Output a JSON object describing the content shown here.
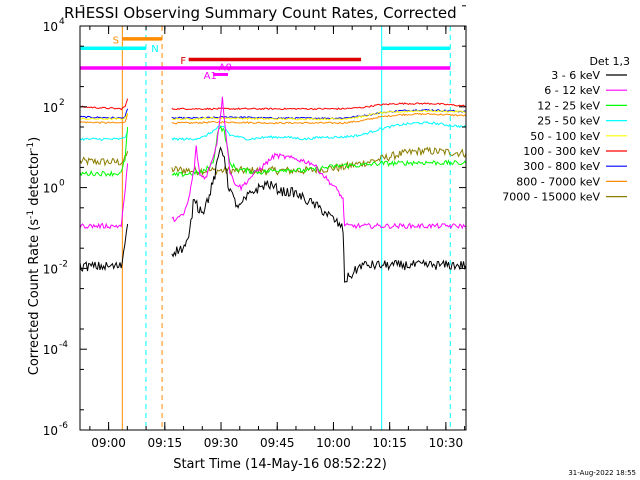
{
  "chart_data": {
    "type": "line",
    "title": "RHESSI Observing Summary Count Rates, Corrected",
    "xlabel": "Start Time (14-May-16 08:52:22)",
    "ylabel_parts": [
      "Corrected Count Rate (s",
      "-1",
      " detector",
      "-1",
      ")"
    ],
    "x_unit": "minutes after 08:52:22",
    "xlim": [
      0,
      103
    ],
    "ylim_log10": [
      -6,
      4
    ],
    "y_scale": "log",
    "grid": false,
    "legend_placement": "right",
    "x_ticks": [
      {
        "t": 7.63,
        "label": "09:00"
      },
      {
        "t": 22.63,
        "label": "09:15"
      },
      {
        "t": 37.63,
        "label": "09:30"
      },
      {
        "t": 52.63,
        "label": "09:45"
      },
      {
        "t": 67.63,
        "label": "10:00"
      },
      {
        "t": 82.63,
        "label": "10:15"
      },
      {
        "t": 97.63,
        "label": "10:30"
      }
    ],
    "y_ticks": [
      {
        "e": -6,
        "label": "10",
        "sup": "-6"
      },
      {
        "e": -4,
        "label": "10",
        "sup": "-4"
      },
      {
        "e": -2,
        "label": "10",
        "sup": "-2"
      },
      {
        "e": 0,
        "label": "10",
        "sup": "0"
      },
      {
        "e": 2,
        "label": "10",
        "sup": "2"
      },
      {
        "e": 4,
        "label": "10",
        "sup": "4"
      }
    ],
    "legend_title": "Det 1,3",
    "series": [
      {
        "name": "3 - 6 keV",
        "color": "#000000",
        "points": [
          [
            0,
            -1.95
          ],
          [
            11,
            -1.95
          ],
          [
            11.6,
            -1.6
          ],
          [
            12.7,
            -0.9
          ],
          [
            15,
            null
          ],
          [
            24.5,
            -1.6
          ],
          [
            27.5,
            -1.5
          ],
          [
            29,
            -1.3
          ],
          [
            30.5,
            -0.2
          ],
          [
            31.5,
            -0.5
          ],
          [
            33,
            -0.55
          ],
          [
            34.5,
            -0.2
          ],
          [
            36,
            0.3
          ],
          [
            37.5,
            1.0
          ],
          [
            38.5,
            0.8
          ],
          [
            39.5,
            0.1
          ],
          [
            41,
            -0.3
          ],
          [
            42.5,
            -0.5
          ],
          [
            44,
            -0.3
          ],
          [
            46,
            -0.1
          ],
          [
            50,
            0.1
          ],
          [
            54,
            -0.1
          ],
          [
            57,
            -0.12
          ],
          [
            63,
            -0.45
          ],
          [
            66,
            -0.65
          ],
          [
            69.5,
            -0.95
          ],
          [
            70.2,
            -1.05
          ],
          [
            70.6,
            -2.3
          ],
          [
            72.5,
            -2.15
          ],
          [
            75,
            -1.92
          ],
          [
            78,
            -1.92
          ],
          [
            88,
            -1.92
          ],
          [
            103,
            -1.92
          ]
        ]
      },
      {
        "name": "6 - 12 keV",
        "color": "#ff00ff",
        "points": [
          [
            0,
            -0.95
          ],
          [
            11,
            -0.95
          ],
          [
            11.8,
            -0.3
          ],
          [
            12.7,
            0.6
          ],
          [
            15,
            null
          ],
          [
            24.5,
            -0.8
          ],
          [
            27.5,
            -0.7
          ],
          [
            29,
            -0.3
          ],
          [
            30.5,
            0.5
          ],
          [
            31,
            1.0
          ],
          [
            32,
            0.3
          ],
          [
            33.5,
            0.25
          ],
          [
            35,
            0.6
          ],
          [
            36.5,
            1.1
          ],
          [
            38,
            2.2
          ],
          [
            39,
            1.3
          ],
          [
            40,
            0.4
          ],
          [
            41,
            0.15
          ],
          [
            43,
            0.0
          ],
          [
            46,
            0.3
          ],
          [
            52,
            0.8
          ],
          [
            58,
            0.7
          ],
          [
            62,
            0.6
          ],
          [
            66,
            0.2
          ],
          [
            69,
            -0.1
          ],
          [
            70.2,
            -0.3
          ],
          [
            70.6,
            -0.95
          ],
          [
            75,
            -0.95
          ],
          [
            88,
            -0.95
          ],
          [
            103,
            -0.95
          ]
        ]
      },
      {
        "name": "12 - 25 keV",
        "color": "#00ff00",
        "points": [
          [
            0,
            0.35
          ],
          [
            11,
            0.35
          ],
          [
            12,
            0.7
          ],
          [
            12.7,
            1.5
          ],
          [
            15,
            null
          ],
          [
            24.5,
            0.3
          ],
          [
            30,
            0.35
          ],
          [
            33,
            0.4
          ],
          [
            35.5,
            0.6
          ],
          [
            37,
            1.5
          ],
          [
            38.5,
            1.4
          ],
          [
            40,
            0.6
          ],
          [
            42,
            0.45
          ],
          [
            48,
            0.38
          ],
          [
            54,
            0.45
          ],
          [
            60,
            0.42
          ],
          [
            66,
            0.5
          ],
          [
            70,
            0.55
          ],
          [
            75,
            0.55
          ],
          [
            80,
            0.6
          ],
          [
            85,
            0.6
          ],
          [
            90,
            0.62
          ],
          [
            94,
            0.62
          ],
          [
            103,
            0.6
          ]
        ]
      },
      {
        "name": "25 - 50 keV",
        "color": "#00ffff",
        "points": [
          [
            0,
            1.2
          ],
          [
            11,
            1.2
          ],
          [
            12,
            1.25
          ],
          [
            12.7,
            1.4
          ],
          [
            15,
            null
          ],
          [
            24.5,
            1.2
          ],
          [
            30,
            1.2
          ],
          [
            33,
            1.25
          ],
          [
            35.5,
            1.4
          ],
          [
            37,
            1.5
          ],
          [
            38.5,
            1.5
          ],
          [
            40,
            1.3
          ],
          [
            45,
            1.2
          ],
          [
            50,
            1.25
          ],
          [
            55,
            1.25
          ],
          [
            60,
            1.2
          ],
          [
            65,
            1.25
          ],
          [
            70,
            1.25
          ],
          [
            75,
            1.3
          ],
          [
            80,
            1.45
          ],
          [
            85,
            1.55
          ],
          [
            90,
            1.6
          ],
          [
            94,
            1.6
          ],
          [
            98,
            1.55
          ],
          [
            103,
            1.5
          ]
        ]
      },
      {
        "name": "50 - 100 keV",
        "color": "#ffff00",
        "points": [
          [
            0,
            1.7
          ],
          [
            11,
            1.7
          ],
          [
            12,
            1.72
          ],
          [
            12.7,
            1.85
          ],
          [
            15,
            null
          ],
          [
            24.5,
            1.7
          ],
          [
            30,
            1.7
          ],
          [
            35,
            1.72
          ],
          [
            40,
            1.72
          ],
          [
            50,
            1.7
          ],
          [
            60,
            1.7
          ],
          [
            70,
            1.7
          ],
          [
            75,
            1.75
          ],
          [
            80,
            1.85
          ],
          [
            90,
            1.9
          ],
          [
            103,
            1.88
          ]
        ]
      },
      {
        "name": "100 - 300 keV",
        "color": "#ff0000",
        "points": [
          [
            0,
            2.0
          ],
          [
            11,
            1.95
          ],
          [
            12,
            2.0
          ],
          [
            12.7,
            2.2
          ],
          [
            15,
            null
          ],
          [
            24.5,
            1.95
          ],
          [
            30,
            1.95
          ],
          [
            35,
            1.95
          ],
          [
            40,
            1.95
          ],
          [
            50,
            1.95
          ],
          [
            60,
            1.95
          ],
          [
            70,
            1.95
          ],
          [
            75,
            1.98
          ],
          [
            80,
            2.05
          ],
          [
            85,
            2.08
          ],
          [
            90,
            2.08
          ],
          [
            94,
            2.08
          ],
          [
            103,
            2.02
          ]
        ]
      },
      {
        "name": "300 - 800 keV",
        "color": "#0000ff",
        "points": [
          [
            0,
            1.75
          ],
          [
            11,
            1.72
          ],
          [
            12,
            1.75
          ],
          [
            12.7,
            1.95
          ],
          [
            15,
            null
          ],
          [
            24.5,
            1.72
          ],
          [
            30,
            1.72
          ],
          [
            35,
            1.73
          ],
          [
            40,
            1.75
          ],
          [
            50,
            1.72
          ],
          [
            60,
            1.72
          ],
          [
            70,
            1.72
          ],
          [
            75,
            1.77
          ],
          [
            80,
            1.85
          ],
          [
            85,
            1.9
          ],
          [
            90,
            1.92
          ],
          [
            94,
            1.92
          ],
          [
            103,
            1.88
          ]
        ]
      },
      {
        "name": "800 - 7000 keV",
        "color": "#ff8c00",
        "points": [
          [
            0,
            1.62
          ],
          [
            11,
            1.6
          ],
          [
            12,
            1.64
          ],
          [
            12.7,
            1.82
          ],
          [
            15,
            null
          ],
          [
            24.5,
            1.6
          ],
          [
            30,
            1.6
          ],
          [
            35,
            1.62
          ],
          [
            40,
            1.62
          ],
          [
            50,
            1.6
          ],
          [
            60,
            1.6
          ],
          [
            70,
            1.6
          ],
          [
            75,
            1.65
          ],
          [
            80,
            1.75
          ],
          [
            85,
            1.8
          ],
          [
            90,
            1.82
          ],
          [
            94,
            1.82
          ],
          [
            103,
            1.78
          ]
        ]
      },
      {
        "name": "7000 - 15000 keV",
        "color": "#8b7d00",
        "points": [
          [
            0,
            0.65
          ],
          [
            11,
            0.63
          ],
          [
            12,
            0.7
          ],
          [
            12.7,
            0.9
          ],
          [
            15,
            null
          ],
          [
            24.5,
            0.45
          ],
          [
            30,
            0.42
          ],
          [
            35,
            0.42
          ],
          [
            40,
            0.42
          ],
          [
            50,
            0.42
          ],
          [
            60,
            0.42
          ],
          [
            70,
            0.5
          ],
          [
            75,
            0.6
          ],
          [
            80,
            0.7
          ],
          [
            85,
            0.82
          ],
          [
            90,
            0.9
          ],
          [
            94,
            0.9
          ],
          [
            98,
            0.88
          ],
          [
            103,
            0.85
          ]
        ]
      }
    ],
    "vlines": [
      {
        "t": 0.0,
        "color": "#00ffff",
        "dash": false
      },
      {
        "t": 11.3,
        "color": "#ff8c00",
        "dash": false
      },
      {
        "t": 17.6,
        "color": "#00ffff",
        "dash": true
      },
      {
        "t": 21.9,
        "color": "#ff8c00",
        "dash": true
      },
      {
        "t": 80.5,
        "color": "#00ffff",
        "dash": false
      },
      {
        "t": 98.8,
        "color": "#00ffff",
        "dash": true
      }
    ],
    "flag_bars": [
      {
        "t0": 11.3,
        "t1": 21.9,
        "log": 3.68,
        "color": "#ff8c00",
        "width": 3.5
      },
      {
        "t0": 0.0,
        "t1": 17.6,
        "log": 3.45,
        "color": "#00ffff",
        "width": 3.5
      },
      {
        "t0": 80.5,
        "t1": 98.8,
        "log": 3.45,
        "color": "#00ffff",
        "width": 3.5
      },
      {
        "t0": 29.0,
        "t1": 75.0,
        "log": 3.17,
        "color": "#dd0000",
        "width": 3.5
      },
      {
        "t0": 0.0,
        "t1": 98.8,
        "log": 2.96,
        "color": "#ff00ff",
        "width": 3.5
      },
      {
        "t0": 35.5,
        "t1": 39.5,
        "log": 2.8,
        "color": "#ff00ff",
        "width": 3.0
      }
    ],
    "flag_labels": [
      {
        "t": 8.7,
        "log": 3.67,
        "text": "S",
        "color": "#ff8c00"
      },
      {
        "t": 19.0,
        "log": 3.45,
        "text": "N",
        "color": "#00ffff"
      },
      {
        "t": 26.8,
        "log": 3.16,
        "text": "F",
        "color": "#dd0000"
      },
      {
        "t": 37.0,
        "log": 3.0,
        "text": "A0",
        "color": "#ff00ff"
      },
      {
        "t": 33.0,
        "log": 2.79,
        "text": "A1",
        "color": "#ff00ff"
      }
    ],
    "footer_date": "31-Aug-2022 18:55"
  }
}
